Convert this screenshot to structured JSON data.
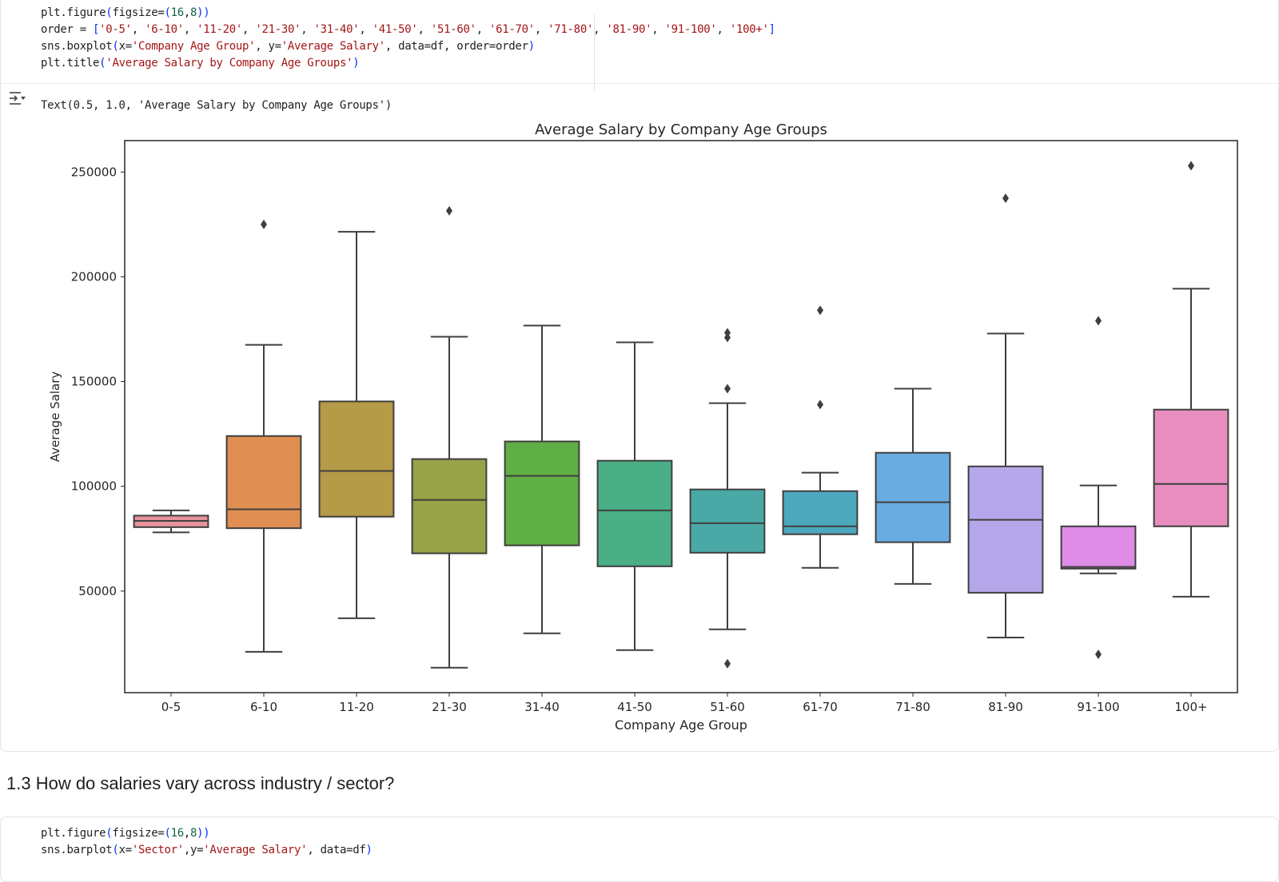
{
  "cells": [
    {
      "type": "code",
      "lines": [
        [
          {
            "t": "plt.figure"
          },
          {
            "t": "(",
            "c": "par"
          },
          {
            "t": "figsize="
          },
          {
            "t": "(",
            "c": "par2"
          },
          {
            "t": "16",
            "c": "num"
          },
          {
            "t": ","
          },
          {
            "t": "8",
            "c": "num"
          },
          {
            "t": ")",
            "c": "par2"
          },
          {
            "t": ")",
            "c": "par"
          }
        ],
        [
          {
            "t": "order = "
          },
          {
            "t": "[",
            "c": "par"
          },
          {
            "t": "'0-5'",
            "c": "str"
          },
          {
            "t": ", "
          },
          {
            "t": "'6-10'",
            "c": "str"
          },
          {
            "t": ", "
          },
          {
            "t": "'11-20'",
            "c": "str"
          },
          {
            "t": ", "
          },
          {
            "t": "'21-30'",
            "c": "str"
          },
          {
            "t": ", "
          },
          {
            "t": "'31-40'",
            "c": "str"
          },
          {
            "t": ", "
          },
          {
            "t": "'41-50'",
            "c": "str"
          },
          {
            "t": ", "
          },
          {
            "t": "'51-60'",
            "c": "str"
          },
          {
            "t": ", "
          },
          {
            "t": "'61-70'",
            "c": "str"
          },
          {
            "t": ", "
          },
          {
            "t": "'71-80'",
            "c": "str"
          },
          {
            "t": ", "
          },
          {
            "t": "'81-90'",
            "c": "str"
          },
          {
            "t": ", "
          },
          {
            "t": "'91-100'",
            "c": "str"
          },
          {
            "t": ", "
          },
          {
            "t": "'100+'",
            "c": "str"
          },
          {
            "t": "]",
            "c": "par"
          }
        ],
        [
          {
            "t": "sns.boxplot"
          },
          {
            "t": "(",
            "c": "par"
          },
          {
            "t": "x="
          },
          {
            "t": "'Company Age Group'",
            "c": "str"
          },
          {
            "t": ", y="
          },
          {
            "t": "'Average Salary'",
            "c": "str"
          },
          {
            "t": ", data=df, order=order"
          },
          {
            "t": ")",
            "c": "par"
          }
        ],
        [
          {
            "t": "plt.title"
          },
          {
            "t": "(",
            "c": "par"
          },
          {
            "t": "'Average Salary by Company Age Groups'",
            "c": "str"
          },
          {
            "t": ")",
            "c": "par"
          }
        ]
      ],
      "output_text": "Text(0.5, 1.0, 'Average Salary by Company Age Groups')",
      "output_icon": "output-toggle-icon"
    },
    {
      "type": "markdown",
      "heading": "1.3 How do salaries vary across industry / sector?"
    },
    {
      "type": "code",
      "lines": [
        [
          {
            "t": "plt.figure"
          },
          {
            "t": "(",
            "c": "par"
          },
          {
            "t": "figsize="
          },
          {
            "t": "(",
            "c": "par2"
          },
          {
            "t": "16",
            "c": "num"
          },
          {
            "t": ","
          },
          {
            "t": "8",
            "c": "num"
          },
          {
            "t": ")",
            "c": "par2"
          },
          {
            "t": ")",
            "c": "par"
          }
        ],
        [
          {
            "t": "sns.barplot"
          },
          {
            "t": "(",
            "c": "par"
          },
          {
            "t": "x="
          },
          {
            "t": "'Sector'",
            "c": "str"
          },
          {
            "t": ",y="
          },
          {
            "t": "'Average Salary'",
            "c": "str"
          },
          {
            "t": ", data=df"
          },
          {
            "t": ")",
            "c": "par"
          }
        ]
      ]
    }
  ],
  "chart_data": {
    "type": "box",
    "title": "Average Salary by Company Age Groups",
    "xlabel": "Company Age Group",
    "ylabel": "Average Salary",
    "ylim": [
      1500,
      265000
    ],
    "yticks": [
      50000,
      100000,
      150000,
      200000,
      250000
    ],
    "ytick_labels": [
      "50000",
      "100000",
      "150000",
      "200000",
      "250000"
    ],
    "grid": false,
    "legend": "none",
    "categories": [
      "0-5",
      "6-10",
      "11-20",
      "21-30",
      "31-40",
      "41-50",
      "51-60",
      "61-70",
      "71-80",
      "81-90",
      "91-100",
      "100+"
    ],
    "colors": [
      "#e8929d",
      "#e08e52",
      "#b59a48",
      "#98a246",
      "#5fae46",
      "#4aae87",
      "#4aa9a6",
      "#4ca8bd",
      "#6aace0",
      "#b6a6ea",
      "#de8ce6",
      "#e78ebf"
    ],
    "boxes": [
      {
        "whislo": 78000,
        "q1": 80500,
        "med": 83500,
        "q3": 86000,
        "whishi": 88500,
        "fliers": []
      },
      {
        "whislo": 21000,
        "q1": 80000,
        "med": 89000,
        "q3": 124000,
        "whishi": 167500,
        "fliers": [
          225000
        ]
      },
      {
        "whislo": 37000,
        "q1": 85500,
        "med": 107300,
        "q3": 140500,
        "whishi": 221500,
        "fliers": []
      },
      {
        "whislo": 13400,
        "q1": 68000,
        "med": 93500,
        "q3": 113000,
        "whishi": 171400,
        "fliers": [
          231500
        ]
      },
      {
        "whislo": 29800,
        "q1": 71800,
        "med": 105000,
        "q3": 121400,
        "whishi": 176700,
        "fliers": []
      },
      {
        "whislo": 21800,
        "q1": 61800,
        "med": 88500,
        "q3": 112200,
        "whishi": 168700,
        "fliers": []
      },
      {
        "whislo": 31700,
        "q1": 68300,
        "med": 82400,
        "q3": 98500,
        "whishi": 139700,
        "fliers": [
          173300,
          171000,
          146600,
          15300
        ]
      },
      {
        "whislo": 61100,
        "q1": 77100,
        "med": 80900,
        "q3": 97700,
        "whishi": 106500,
        "fliers": [
          184000,
          139000
        ]
      },
      {
        "whislo": 53400,
        "q1": 73300,
        "med": 92400,
        "q3": 116000,
        "whishi": 146600,
        "fliers": []
      },
      {
        "whislo": 27800,
        "q1": 49200,
        "med": 84000,
        "q3": 109500,
        "whishi": 172900,
        "fliers": [
          237500
        ]
      },
      {
        "whislo": 58400,
        "q1": 60700,
        "med": 61500,
        "q3": 80900,
        "whishi": 100400,
        "fliers": [
          179000,
          19800
        ]
      },
      {
        "whislo": 47300,
        "q1": 80900,
        "med": 101100,
        "q3": 136600,
        "whishi": 194300,
        "fliers": [
          253000
        ]
      }
    ]
  }
}
